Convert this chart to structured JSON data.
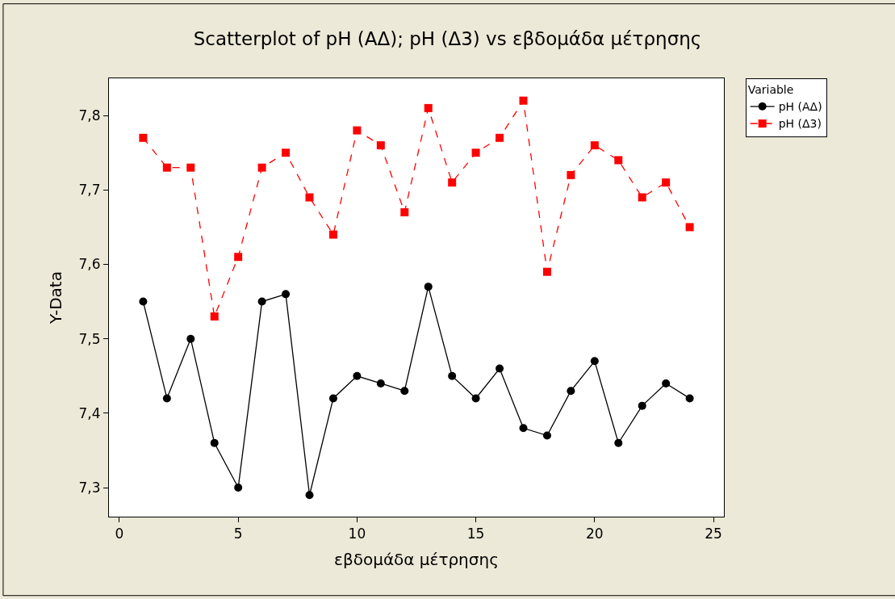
{
  "chart_data": {
    "type": "line",
    "title": "Scatterplot of pH (ΑΔ); pH (Δ3) vs εβδομάδα μέτρησης",
    "xlabel": "εβδομάδα μέτρησης",
    "ylabel": "Y-Data",
    "legend_title": "Variable",
    "legend": "right",
    "x": [
      1,
      2,
      3,
      4,
      5,
      6,
      7,
      8,
      9,
      10,
      11,
      12,
      13,
      14,
      15,
      16,
      17,
      18,
      19,
      20,
      21,
      22,
      23,
      24
    ],
    "series": [
      {
        "name": "pH (ΑΔ)",
        "color": "#000000",
        "marker": "circle",
        "line_style": "solid",
        "values": [
          7.55,
          7.42,
          7.5,
          7.36,
          7.3,
          7.55,
          7.56,
          7.29,
          7.42,
          7.45,
          7.44,
          7.43,
          7.57,
          7.45,
          7.42,
          7.46,
          7.38,
          7.37,
          7.43,
          7.47,
          7.36,
          7.41,
          7.44,
          7.42
        ]
      },
      {
        "name": "pH (Δ3)",
        "color": "#ff0000",
        "marker": "square",
        "line_style": "dashed",
        "values": [
          7.77,
          7.73,
          7.73,
          7.53,
          7.61,
          7.73,
          7.75,
          7.69,
          7.64,
          7.78,
          7.76,
          7.67,
          7.81,
          7.71,
          7.75,
          7.77,
          7.82,
          7.59,
          7.72,
          7.76,
          7.74,
          7.69,
          7.71,
          7.65
        ]
      }
    ],
    "xlim": [
      -0.44,
      25.44
    ],
    "xticks": [
      0,
      5,
      10,
      15,
      20,
      25
    ],
    "ylim": [
      7.261,
      7.85
    ],
    "yticks": [
      {
        "value": 7.3,
        "label": "7,3"
      },
      {
        "value": 7.4,
        "label": "7,4"
      },
      {
        "value": 7.5,
        "label": "7,5"
      },
      {
        "value": 7.6,
        "label": "7,6"
      },
      {
        "value": 7.7,
        "label": "7,7"
      },
      {
        "value": 7.8,
        "label": "7,8"
      }
    ]
  }
}
